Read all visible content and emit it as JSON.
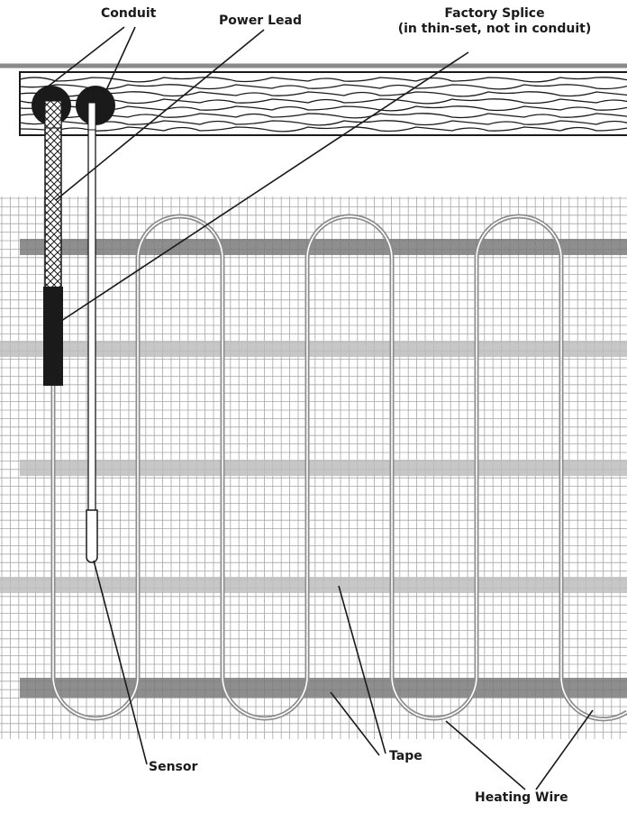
{
  "labels": {
    "conduit": "Conduit",
    "power_lead": "Power Lead",
    "factory_splice_line1": "Factory Splice",
    "factory_splice_line2": "(in thin-set, not in conduit)",
    "sensor": "Sensor",
    "tape": "Tape",
    "heating_wire": "Heating Wire"
  },
  "colors": {
    "ink": "#1a1a1a",
    "grid": "#a6a6a6",
    "tape_dark": "#7a7a7a",
    "tape_light": "#bdbdbd",
    "wire": "#8c8c8c",
    "floor_line": "#8a8a8a"
  }
}
